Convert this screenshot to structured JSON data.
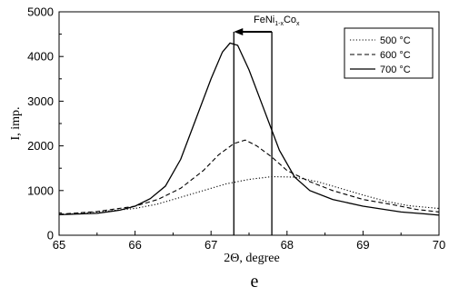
{
  "chart_data": {
    "type": "line",
    "xlabel": "2Θ, degree",
    "ylabel": "I, imp.",
    "panel_label": "e",
    "xlim": [
      65,
      70
    ],
    "ylim": [
      0,
      5000
    ],
    "xticks": [
      65,
      66,
      67,
      68,
      69,
      70
    ],
    "yticks": [
      0,
      1000,
      2000,
      3000,
      4000,
      5000
    ],
    "legend_position": "top-right",
    "annotation": {
      "base": "FeNi",
      "sub1": "1-x",
      "mid": "Co",
      "sub2": "x",
      "arrow_from_x": 67.8,
      "arrow_to_x": 67.3,
      "vertical_lines_x": [
        67.3,
        67.8
      ]
    },
    "series": [
      {
        "name": "500 °C",
        "style": "dotted",
        "x": [
          65,
          65.5,
          66,
          66.3,
          66.6,
          66.9,
          67.2,
          67.5,
          67.8,
          68.1,
          68.4,
          68.7,
          69,
          69.3,
          69.6,
          70
        ],
        "y": [
          460,
          520,
          600,
          700,
          850,
          1000,
          1150,
          1250,
          1310,
          1300,
          1200,
          1050,
          900,
          760,
          660,
          600
        ]
      },
      {
        "name": "600 °C",
        "style": "dashed",
        "x": [
          65,
          65.5,
          66,
          66.3,
          66.6,
          66.9,
          67.1,
          67.3,
          67.45,
          67.6,
          67.8,
          68,
          68.3,
          68.6,
          69,
          69.4,
          69.7,
          70
        ],
        "y": [
          470,
          530,
          650,
          800,
          1050,
          1450,
          1800,
          2050,
          2130,
          2000,
          1750,
          1450,
          1200,
          1000,
          800,
          680,
          580,
          520
        ]
      },
      {
        "name": "700 °C",
        "style": "solid",
        "x": [
          65,
          65.5,
          65.8,
          66,
          66.2,
          66.4,
          66.6,
          66.8,
          67,
          67.15,
          67.25,
          67.35,
          67.5,
          67.7,
          67.9,
          68.1,
          68.3,
          68.6,
          69,
          69.5,
          69.8,
          70
        ],
        "y": [
          460,
          490,
          560,
          650,
          820,
          1100,
          1700,
          2600,
          3500,
          4100,
          4300,
          4250,
          3700,
          2800,
          1900,
          1300,
          1000,
          800,
          650,
          520,
          480,
          450
        ]
      }
    ]
  }
}
